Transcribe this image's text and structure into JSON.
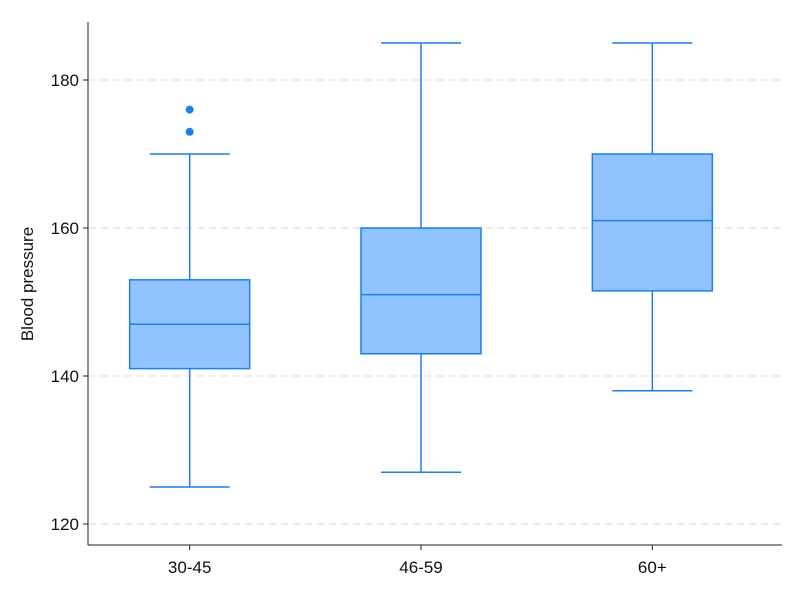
{
  "chart_data": {
    "type": "box",
    "title": "",
    "xlabel": "",
    "ylabel": "Blood pressure",
    "ylim": [
      117,
      187
    ],
    "yticks": [
      120,
      140,
      160,
      180
    ],
    "grid": {
      "horizontal": true,
      "style": "dashed",
      "color": "#e6e6e6"
    },
    "colors": {
      "box_fill": "#90c3ff",
      "stroke": "#1e7fe6",
      "outlier": "#1e7fe6",
      "axis": "#222222"
    },
    "categories": [
      "30-45",
      "46-59",
      "60+"
    ],
    "boxes": [
      {
        "category": "30-45",
        "whisker_low": 125,
        "q1": 141,
        "median": 147,
        "q3": 153,
        "whisker_high": 170,
        "outliers": [
          173,
          176
        ]
      },
      {
        "category": "46-59",
        "whisker_low": 127,
        "q1": 143,
        "median": 151,
        "q3": 160,
        "whisker_high": 185,
        "outliers": []
      },
      {
        "category": "60+",
        "whisker_low": 138,
        "q1": 151.5,
        "median": 161,
        "q3": 170,
        "whisker_high": 185,
        "outliers": []
      }
    ]
  }
}
